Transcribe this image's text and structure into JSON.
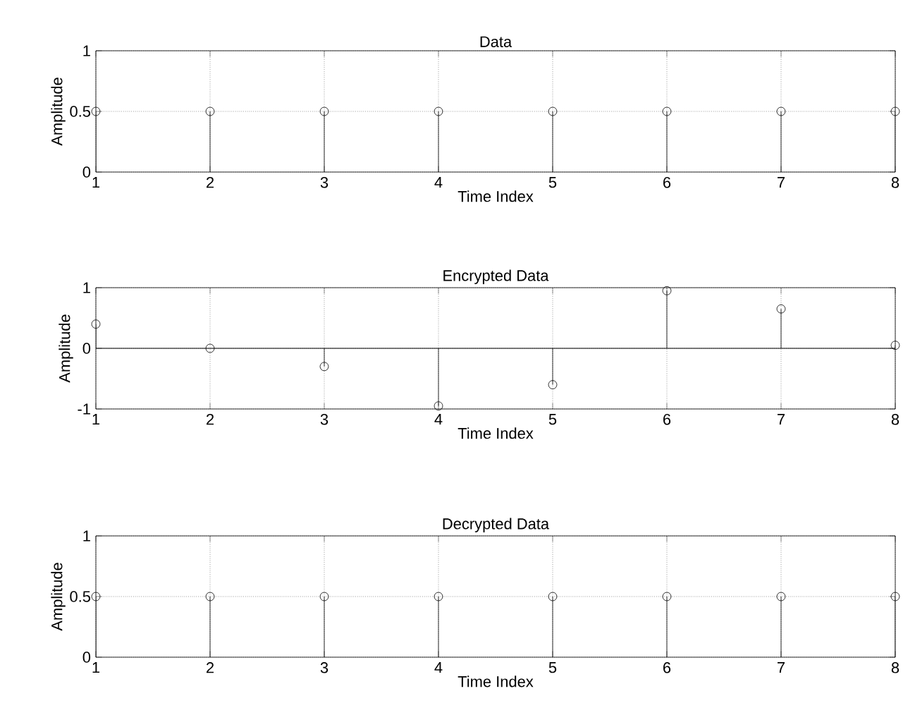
{
  "chart_data": [
    {
      "type": "lollipop",
      "title": "Data",
      "xlabel": "Time Index",
      "ylabel": "Amplitude",
      "x": [
        1,
        2,
        3,
        4,
        5,
        6,
        7,
        8
      ],
      "values": [
        0.5,
        0.5,
        0.5,
        0.5,
        0.5,
        0.5,
        0.5,
        0.5
      ],
      "color": "#000000",
      "xlim": [
        1,
        8
      ],
      "xticks": [
        1,
        2,
        3,
        4,
        5,
        6,
        7,
        8
      ],
      "ylim": [
        0,
        1
      ],
      "yticks": [
        0,
        0.5,
        1
      ],
      "grid": true,
      "marker": "circle"
    },
    {
      "type": "lollipop",
      "title": "Encrypted Data",
      "xlabel": "Time Index",
      "ylabel": "Amplitude",
      "x": [
        1,
        2,
        3,
        4,
        5,
        6,
        7,
        8
      ],
      "values": [
        0.4,
        0,
        -0.3,
        -0.95,
        -0.6,
        0.95,
        0.65,
        0.05
      ],
      "color": "#000000",
      "xlim": [
        1,
        8
      ],
      "xticks": [
        1,
        2,
        3,
        4,
        5,
        6,
        7,
        8
      ],
      "ylim": [
        -1,
        1
      ],
      "yticks": [
        -1,
        0,
        1
      ],
      "grid": true,
      "marker": "circle",
      "ref_lines": [
        {
          "axis": "y",
          "value": 0
        }
      ]
    },
    {
      "type": "lollipop",
      "title": "Decrypted Data",
      "xlabel": "Time Index",
      "ylabel": "Amplitude",
      "x": [
        1,
        2,
        3,
        4,
        5,
        6,
        7,
        8
      ],
      "values": [
        0.5,
        0.5,
        0.5,
        0.5,
        0.5,
        0.5,
        0.5,
        0.5
      ],
      "color": "#000000",
      "xlim": [
        1,
        8
      ],
      "xticks": [
        1,
        2,
        3,
        4,
        5,
        6,
        7,
        8
      ],
      "ylim": [
        0,
        1
      ],
      "yticks": [
        0,
        0.5,
        1
      ],
      "grid": true,
      "marker": "circle"
    }
  ]
}
